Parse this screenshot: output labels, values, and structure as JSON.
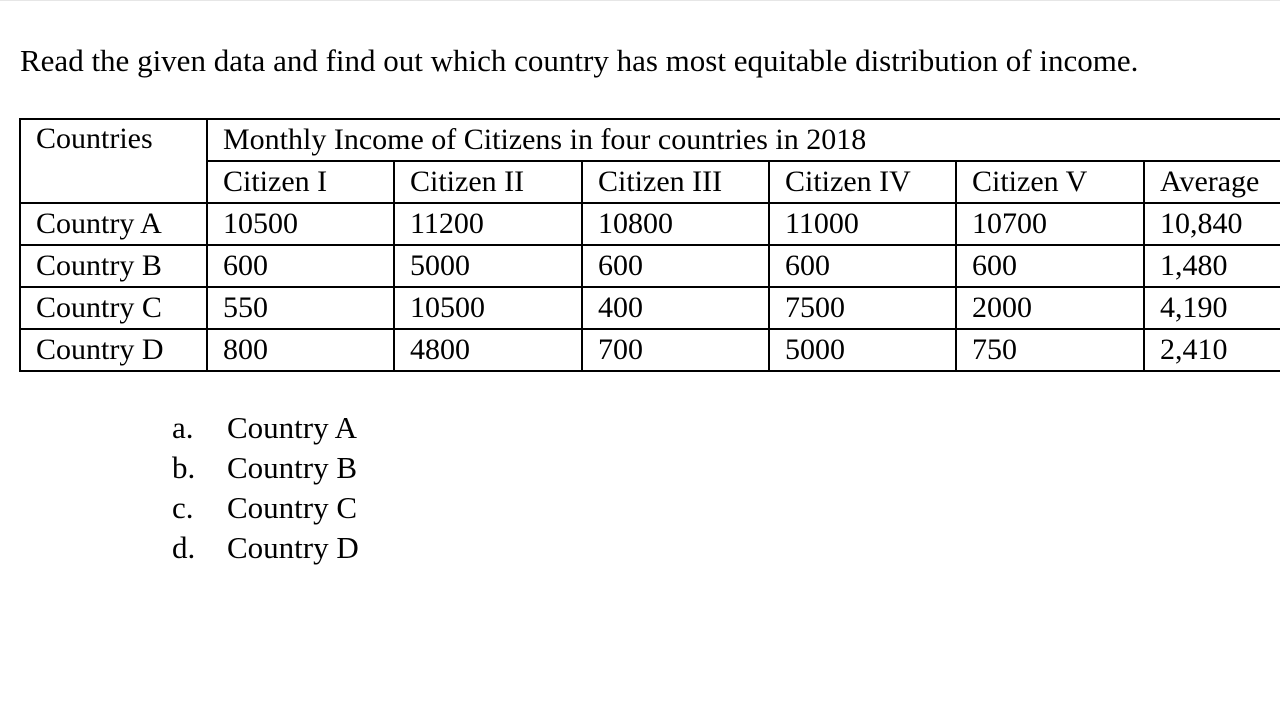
{
  "question": "Read the given data and find out which country has most equitable distribution of income.",
  "table": {
    "corner_header": "Countries",
    "group_header": "Monthly Income of Citizens in four countries in 2018",
    "columns": [
      "Citizen I",
      "Citizen II",
      "Citizen III",
      "Citizen IV",
      "Citizen V",
      "Average"
    ],
    "rows": [
      {
        "country": "Country A",
        "values": [
          "10500",
          "11200",
          "10800",
          "11000",
          "10700",
          "10,840"
        ]
      },
      {
        "country": "Country B",
        "values": [
          "600",
          "5000",
          "600",
          "600",
          "600",
          "1,480"
        ]
      },
      {
        "country": "Country C",
        "values": [
          "550",
          "10500",
          "400",
          "7500",
          "2000",
          "4,190"
        ]
      },
      {
        "country": "Country D",
        "values": [
          "800",
          "4800",
          "700",
          "5000",
          "750",
          "2,410"
        ]
      }
    ]
  },
  "options": [
    {
      "letter": "a.",
      "text": "Country A"
    },
    {
      "letter": "b.",
      "text": "Country B"
    },
    {
      "letter": "c.",
      "text": "Country C"
    },
    {
      "letter": "d.",
      "text": "Country D"
    }
  ]
}
